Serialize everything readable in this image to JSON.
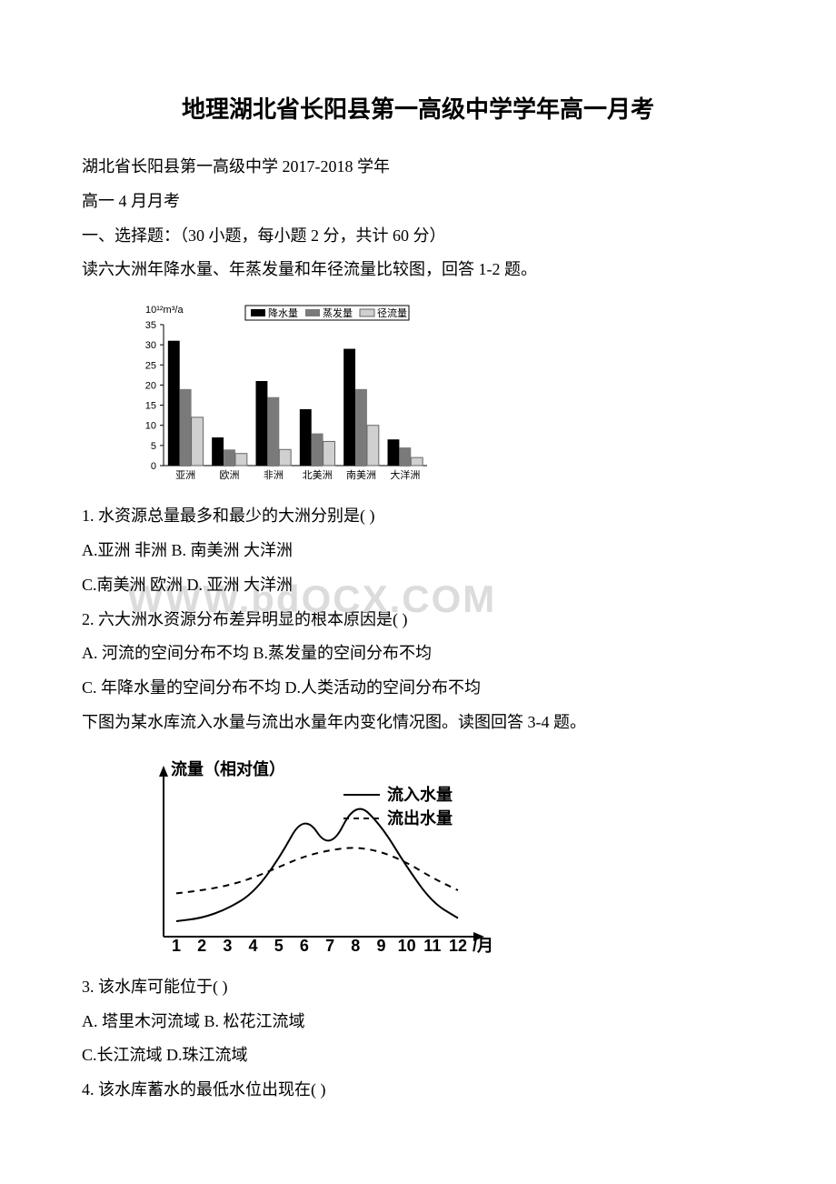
{
  "title": "地理湖北省长阳县第一高级中学学年高一月考",
  "header1": "湖北省长阳县第一高级中学 2017-2018 学年",
  "header2": "高一 4 月月考",
  "section": "一、选择题：（30 小题，每小题 2 分，共计 60 分）",
  "intro1": "读六大洲年降水量、年蒸发量和年径流量比较图，回答 1-2 题。",
  "chart1": {
    "type": "bar",
    "y_unit": "10¹²m³/a",
    "ylim": [
      0,
      35
    ],
    "ytick_step": 5,
    "yticks": [
      "0",
      "5",
      "10",
      "15",
      "20",
      "25",
      "30",
      "35"
    ],
    "categories": [
      "亚洲",
      "欧洲",
      "非洲",
      "北美洲",
      "南美洲",
      "大洋洲"
    ],
    "legend": [
      "降水量",
      "蒸发量",
      "径流量"
    ],
    "colors": [
      "#000000",
      "#7a7a7a",
      "#d0d0d0"
    ],
    "series": {
      "降水量": [
        31,
        7,
        21,
        14,
        29,
        6.5
      ],
      "蒸发量": [
        19,
        4,
        17,
        8,
        19,
        4.5
      ],
      "径流量": [
        12,
        3,
        4,
        6,
        10,
        2
      ]
    },
    "background_color": "#ffffff",
    "bar_group_width": 0.8
  },
  "q1": "1. 水资源总量最多和最少的大洲分别是(        )",
  "q1_optAB": "A.亚洲    非洲        B. 南美洲    大洋洲",
  "q1_optCD": "C.南美洲    欧洲       D. 亚洲    大洋洲",
  "q2": "2. 六大洲水资源分布差异明显的根本原因是(        )",
  "q2_optAB": "A. 河流的空间分布不均      B.蒸发量的空间分布不均",
  "q2_optCD": "C. 年降水量的空间分布不均    D.人类活动的空间分布不均",
  "intro2": "下图为某水库流入水量与流出水量年内变化情况图。读图回答 3-4 题。",
  "chart2": {
    "type": "line",
    "ylabel": "流量（相对值）",
    "xlabel": "/月",
    "xticks": [
      "1",
      "2",
      "3",
      "4",
      "5",
      "6",
      "7",
      "8",
      "9",
      "10",
      "11",
      "12"
    ],
    "legend": [
      {
        "label": "流入水量",
        "dash": "solid",
        "color": "#000000"
      },
      {
        "label": "流出水量",
        "dash": "dashed",
        "color": "#000000"
      }
    ],
    "inflow": [
      10,
      12,
      18,
      28,
      50,
      80,
      55,
      88,
      72,
      45,
      22,
      12
    ],
    "outflow": [
      28,
      30,
      33,
      38,
      45,
      52,
      56,
      58,
      55,
      48,
      38,
      30
    ]
  },
  "q3": "3. 该水库可能位于(        )",
  "q3_optAB": "A. 塔里木河流域       B. 松花江流域",
  "q3_optCD": "C.长江流域        D.珠江流域",
  "q4": "4. 该水库蓄水的最低水位出现在(    )",
  "watermark": "WWW.bdOCX.COM"
}
